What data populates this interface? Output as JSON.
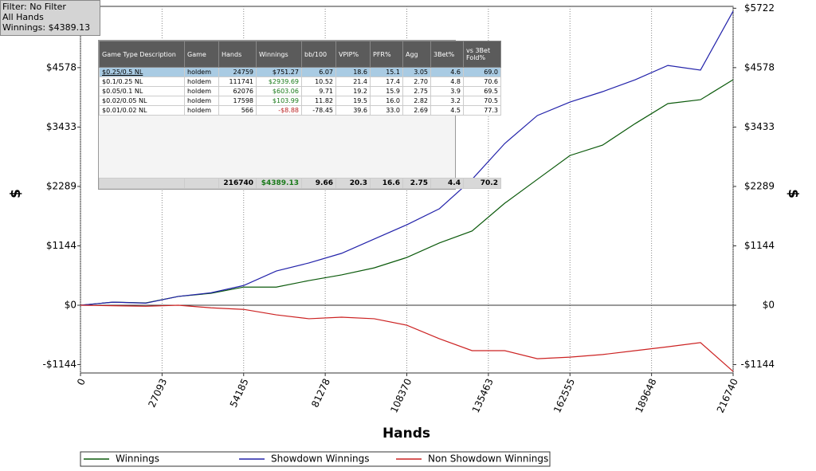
{
  "filter_box": [
    "Filter: No Filter",
    "All Hands",
    "Winnings: $4389.13"
  ],
  "table": {
    "columns": [
      "Game Type Description",
      "Game",
      "Hands",
      "Winnings",
      "bb/100",
      "VPIP%",
      "PFR%",
      "Agg",
      "3Bet%",
      "vs 3Bet Fold%"
    ],
    "rows": [
      [
        "$0.25/0.5 NL",
        "holdem",
        "24759",
        "$751.27",
        "6.07",
        "18.6",
        "15.1",
        "3.05",
        "4.6",
        "69.0"
      ],
      [
        "$0.1/0.25 NL",
        "holdem",
        "111741",
        "$2939.69",
        "10.52",
        "21.4",
        "17.4",
        "2.70",
        "4.8",
        "70.6"
      ],
      [
        "$0.05/0.1 NL",
        "holdem",
        "62076",
        "$603.06",
        "9.71",
        "19.2",
        "15.9",
        "2.75",
        "3.9",
        "69.5"
      ],
      [
        "$0.02/0.05 NL",
        "holdem",
        "17598",
        "$103.99",
        "11.82",
        "19.5",
        "16.0",
        "2.82",
        "3.2",
        "70.5"
      ],
      [
        "$0.01/0.02 NL",
        "holdem",
        "566",
        "-$8.88",
        "-78.45",
        "39.6",
        "33.0",
        "2.69",
        "4.5",
        "77.3"
      ]
    ],
    "totals": [
      "216740",
      "$4389.13",
      "9.66",
      "20.3",
      "16.6",
      "2.75",
      "4.4",
      "70.2"
    ]
  },
  "chart_data": {
    "type": "line",
    "x_label": "Hands",
    "y_label": "$",
    "y2_label": "$",
    "x": [
      0,
      10837,
      21674,
      32511,
      43348,
      54185,
      65022,
      75859,
      86696,
      97533,
      108370,
      119207,
      130044,
      140881,
      151718,
      162555,
      173392,
      184229,
      195066,
      205903,
      216740
    ],
    "series": [
      {
        "name": "Winnings",
        "color": "#0b5a0b",
        "values": [
          0,
          60,
          45,
          170,
          230,
          350,
          350,
          475,
          585,
          720,
          920,
          1200,
          1430,
          1965,
          2425,
          2885,
          3085,
          3500,
          3885,
          3960,
          4345
        ]
      },
      {
        "name": "Showdown Winnings",
        "color": "#2222aa",
        "values": [
          0,
          60,
          40,
          170,
          240,
          380,
          660,
          815,
          1000,
          1275,
          1550,
          1860,
          2425,
          3115,
          3655,
          3915,
          4115,
          4345,
          4620,
          4530,
          5665
        ]
      },
      {
        "name": "Non Showdown Winnings",
        "color": "#cc2222",
        "values": [
          0,
          -10,
          -20,
          0,
          -50,
          -80,
          -185,
          -260,
          -230,
          -260,
          -385,
          -645,
          -875,
          -875,
          -1030,
          -1000,
          -950,
          -875,
          -800,
          -720,
          -1275
        ]
      }
    ],
    "xlim": [
      0,
      216740
    ],
    "xticks": [
      0,
      27093,
      54185,
      81278,
      108370,
      135463,
      162555,
      189648,
      216740
    ],
    "ylim": [
      -1305,
      5758
    ],
    "yticks": [
      {
        "value": -1144,
        "label": "-$1144"
      },
      {
        "value": 0,
        "label": "$0"
      },
      {
        "value": 1144,
        "label": "$1144"
      },
      {
        "value": 2289,
        "label": "$2289"
      },
      {
        "value": 3433,
        "label": "$3433"
      },
      {
        "value": 4578,
        "label": "$4578"
      },
      {
        "value": 5722,
        "label": "$5722"
      }
    ],
    "y2lim": [
      -1305,
      5758
    ],
    "y2ticks": [
      {
        "value": -1144,
        "label": "-$1144"
      },
      {
        "value": 0,
        "label": "$0"
      },
      {
        "value": 1144,
        "label": "$1144"
      },
      {
        "value": 2289,
        "label": "$2289"
      },
      {
        "value": 3433,
        "label": "$3433"
      },
      {
        "value": 4578,
        "label": "$4578"
      },
      {
        "value": 5722,
        "label": "$5722"
      }
    ],
    "grid": "x"
  }
}
